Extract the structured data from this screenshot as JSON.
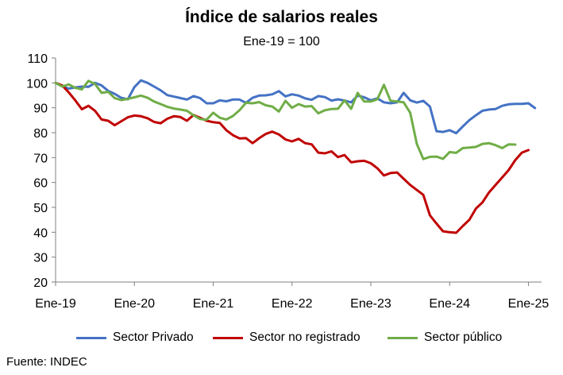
{
  "chart_data": {
    "type": "line",
    "title": "Índice de salarios reales",
    "subtitle": "Ene-19 = 100",
    "xlabel": "",
    "ylabel": "",
    "ylim": [
      20,
      110
    ],
    "yticks": [
      20,
      30,
      40,
      50,
      60,
      70,
      80,
      90,
      100,
      110
    ],
    "x_tick_labels": [
      "Ene-19",
      "Ene-20",
      "Ene-21",
      "Ene-22",
      "Ene-23",
      "Ene-24",
      "Ene-25"
    ],
    "x_start": "2019-01",
    "x_end": "2025-03",
    "grid": false,
    "legend_position": "bottom",
    "series": [
      {
        "name": "Sector Privado",
        "color": "#4472C4",
        "values": [
          100.0,
          98.6,
          97.7,
          98.2,
          98.5,
          98.4,
          100.0,
          99.0,
          96.8,
          95.6,
          94.0,
          93.4,
          98.3,
          101.0,
          100.0,
          98.5,
          97.0,
          95.1,
          94.5,
          93.9,
          93.3,
          94.7,
          93.9,
          91.8,
          91.8,
          93.0,
          92.6,
          93.3,
          93.3,
          92.0,
          94.0,
          94.9,
          95.0,
          95.4,
          96.7,
          94.6,
          95.4,
          94.9,
          93.8,
          93.2,
          94.7,
          94.3,
          92.9,
          93.4,
          92.9,
          92.2,
          94.9,
          94.2,
          93.0,
          93.8,
          92.2,
          91.8,
          92.2,
          96.0,
          93.0,
          92.1,
          92.8,
          90.5,
          80.6,
          80.3,
          81.0,
          79.8,
          82.5,
          85.0,
          87.0,
          88.8,
          89.3,
          89.5,
          90.8,
          91.4,
          91.6,
          91.6,
          91.8,
          89.9
        ]
      },
      {
        "name": "Sector no registrado",
        "color": "#C00000",
        "values": [
          100.0,
          99.0,
          96.2,
          93.0,
          89.4,
          90.8,
          88.8,
          85.3,
          84.8,
          83.0,
          84.6,
          86.2,
          86.9,
          86.6,
          85.8,
          84.3,
          83.8,
          85.6,
          86.6,
          86.3,
          84.8,
          87.1,
          86.0,
          84.8,
          84.2,
          83.9,
          81.0,
          79.0,
          77.7,
          77.8,
          75.8,
          77.8,
          79.5,
          80.4,
          79.3,
          77.3,
          76.5,
          77.5,
          75.8,
          75.3,
          72.0,
          71.7,
          72.5,
          70.2,
          71.0,
          68.1,
          68.5,
          68.7,
          67.7,
          65.7,
          62.8,
          63.8,
          64.0,
          61.5,
          59.0,
          57.0,
          55.0,
          46.8,
          43.5,
          40.4,
          40.0,
          39.8,
          42.5,
          45.0,
          49.5,
          52.0,
          56.0,
          59.0,
          62.0,
          65.0,
          69.0,
          72.0,
          73.0
        ]
      },
      {
        "name": "Sector público",
        "color": "#70AD47",
        "values": [
          100.0,
          98.5,
          99.4,
          98.0,
          97.4,
          100.8,
          99.6,
          96.0,
          96.4,
          93.9,
          93.1,
          93.6,
          94.2,
          94.9,
          94.0,
          92.5,
          91.5,
          90.4,
          89.7,
          89.3,
          88.8,
          87.0,
          85.5,
          85.2,
          88.0,
          86.0,
          85.3,
          86.7,
          89.0,
          92.0,
          91.8,
          92.3,
          91.0,
          90.5,
          88.5,
          92.8,
          90.0,
          91.5,
          90.5,
          90.7,
          87.8,
          89.0,
          89.5,
          89.6,
          93.0,
          89.6,
          96.0,
          92.5,
          92.5,
          93.4,
          99.2,
          92.8,
          92.5,
          92.2,
          88.0,
          75.5,
          69.4,
          70.3,
          70.4,
          69.5,
          72.2,
          71.9,
          73.8,
          74.0,
          74.3,
          75.5,
          75.8,
          75.0,
          73.8,
          75.3,
          75.2
        ]
      }
    ]
  },
  "source": "Fuente: INDEC"
}
